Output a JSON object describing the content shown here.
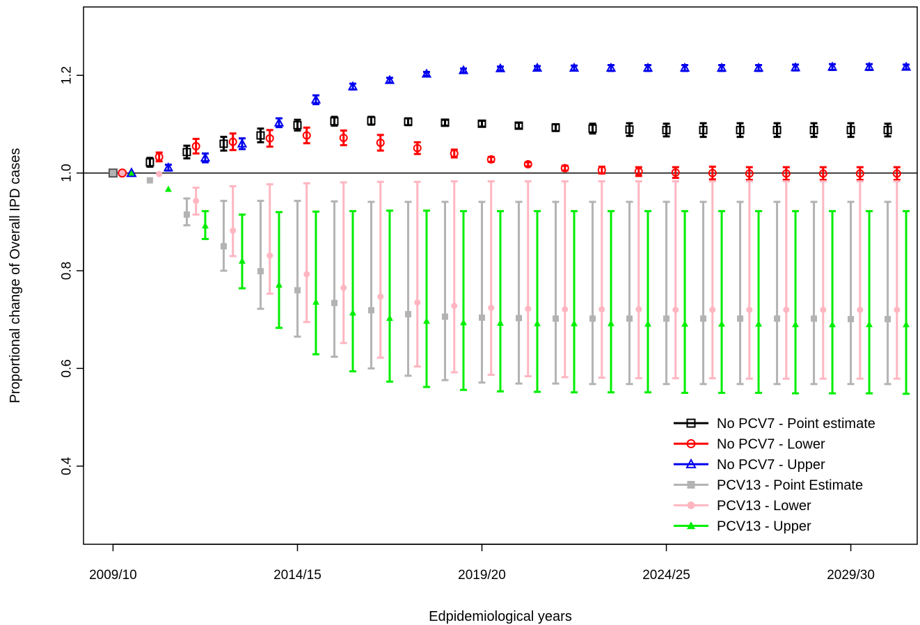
{
  "chart_data": {
    "type": "scatter",
    "xlabel": "Edpidemiological years",
    "ylabel": "Proportional change of Overall IPD cases",
    "x_tick_labels": [
      "2009/10",
      "2014/15",
      "2019/20",
      "2024/25",
      "2029/30"
    ],
    "x_tick_positions": [
      0,
      5,
      10,
      15,
      20
    ],
    "xlim": [
      -0.8,
      21.8
    ],
    "ylim": [
      0.24,
      1.34
    ],
    "y_ticks": [
      0.4,
      0.6,
      0.8,
      1.0,
      1.2
    ],
    "y_tick_labels": [
      "0.4",
      "0.6",
      "0.8",
      "1.0",
      "1.2"
    ],
    "reference_line": 1.0,
    "grid": false,
    "legend_position": "bottom-right",
    "series": [
      {
        "name": "No PCV7 - Point estimate",
        "color": "#000000",
        "marker": "open-square",
        "offset": 1.0,
        "y": [
          1.022,
          1.043,
          1.06,
          1.077,
          1.098,
          1.106,
          1.107,
          1.105,
          1.103,
          1.101,
          1.097,
          1.093,
          1.091,
          1.089,
          1.088,
          1.088,
          1.088,
          1.088,
          1.088,
          1.088,
          1.088
        ],
        "err": [
          0.009,
          0.013,
          0.014,
          0.014,
          0.011,
          0.009,
          0.008,
          0.007,
          0.006,
          0.006,
          0.006,
          0.007,
          0.01,
          0.013,
          0.013,
          0.014,
          0.014,
          0.014,
          0.014,
          0.014,
          0.013
        ]
      },
      {
        "name": "No PCV7 - Lower",
        "color": "#ff0000",
        "marker": "open-circle",
        "offset": 1.25,
        "y": [
          1.033,
          1.055,
          1.064,
          1.071,
          1.077,
          1.072,
          1.062,
          1.051,
          1.04,
          1.028,
          1.018,
          1.01,
          1.006,
          1.003,
          1.001,
          1.0,
          0.999,
          0.999,
          0.999,
          0.999,
          0.999
        ],
        "err": [
          0.009,
          0.015,
          0.017,
          0.017,
          0.016,
          0.015,
          0.016,
          0.012,
          0.008,
          0.005,
          0.004,
          0.005,
          0.007,
          0.009,
          0.011,
          0.013,
          0.013,
          0.013,
          0.013,
          0.013,
          0.013
        ]
      },
      {
        "name": "No PCV7 - Upper",
        "color": "#0000ee",
        "marker": "open-triangle",
        "offset": 1.5,
        "y": [
          1.011,
          1.031,
          1.06,
          1.103,
          1.15,
          1.177,
          1.19,
          1.203,
          1.21,
          1.214,
          1.215,
          1.215,
          1.215,
          1.215,
          1.215,
          1.215,
          1.215,
          1.216,
          1.217,
          1.217,
          1.217
        ],
        "err": [
          0.006,
          0.009,
          0.011,
          0.009,
          0.009,
          0.006,
          0.005,
          0.004,
          0.004,
          0.004,
          0.004,
          0.005,
          0.006,
          0.006,
          0.006,
          0.006,
          0.006,
          0.006,
          0.006,
          0.006,
          0.005
        ]
      },
      {
        "name": "PCV13 - Point Estimate",
        "color": "#b3b3b3",
        "marker": "filled-square",
        "offset": 1.0,
        "y": [
          0.985,
          0.915,
          0.85,
          0.799,
          0.76,
          0.734,
          0.719,
          0.711,
          0.706,
          0.704,
          0.703,
          0.702,
          0.702,
          0.702,
          0.702,
          0.702,
          0.702,
          0.702,
          0.702,
          0.701,
          0.701
        ],
        "lo": [
          0.985,
          0.893,
          0.8,
          0.722,
          0.665,
          0.624,
          0.6,
          0.585,
          0.576,
          0.571,
          0.569,
          0.569,
          0.568,
          0.568,
          0.568,
          0.568,
          0.568,
          0.568,
          0.568,
          0.568,
          0.568
        ],
        "hi": [
          0.985,
          0.948,
          0.943,
          0.943,
          0.943,
          0.942,
          0.941,
          0.941,
          0.941,
          0.941,
          0.941,
          0.941,
          0.941,
          0.941,
          0.941,
          0.941,
          0.941,
          0.941,
          0.941,
          0.941,
          0.941
        ]
      },
      {
        "name": "PCV13 - Lower",
        "color": "#ffb6c1",
        "marker": "filled-circle",
        "offset": 1.25,
        "y": [
          0.998,
          0.943,
          0.882,
          0.831,
          0.793,
          0.765,
          0.747,
          0.735,
          0.728,
          0.724,
          0.722,
          0.721,
          0.721,
          0.721,
          0.72,
          0.72,
          0.72,
          0.72,
          0.72,
          0.72,
          0.72
        ],
        "lo": [
          0.998,
          0.915,
          0.83,
          0.753,
          0.695,
          0.652,
          0.622,
          0.604,
          0.592,
          0.587,
          0.584,
          0.582,
          0.581,
          0.58,
          0.58,
          0.58,
          0.579,
          0.579,
          0.579,
          0.579,
          0.579
        ],
        "hi": [
          0.998,
          0.97,
          0.973,
          0.977,
          0.979,
          0.981,
          0.982,
          0.982,
          0.983,
          0.983,
          0.983,
          0.983,
          0.983,
          0.983,
          0.983,
          0.983,
          0.983,
          0.983,
          0.983,
          0.983,
          0.983
        ]
      },
      {
        "name": "PCV13 - Upper",
        "color": "#00ee00",
        "marker": "filled-triangle",
        "offset": 1.5,
        "y": [
          0.967,
          0.892,
          0.82,
          0.771,
          0.736,
          0.714,
          0.703,
          0.697,
          0.694,
          0.693,
          0.692,
          0.692,
          0.692,
          0.691,
          0.691,
          0.691,
          0.691,
          0.69,
          0.69,
          0.69,
          0.69
        ],
        "lo": [
          0.967,
          0.865,
          0.764,
          0.683,
          0.629,
          0.594,
          0.573,
          0.562,
          0.556,
          0.553,
          0.552,
          0.551,
          0.551,
          0.551,
          0.55,
          0.55,
          0.55,
          0.549,
          0.549,
          0.549,
          0.548
        ],
        "hi": [
          0.967,
          0.922,
          0.915,
          0.92,
          0.921,
          0.922,
          0.923,
          0.923,
          0.922,
          0.922,
          0.922,
          0.922,
          0.922,
          0.922,
          0.922,
          0.922,
          0.922,
          0.922,
          0.922,
          0.922,
          0.922
        ]
      }
    ],
    "baseline_points": [
      {
        "x": 0,
        "y": 1.0,
        "color": "#b3b3b3",
        "stroke": "#555555",
        "marker": "square"
      },
      {
        "x": 0.25,
        "y": 1.0,
        "color": "#ffb6c1",
        "stroke": "#ff0000",
        "marker": "circle"
      },
      {
        "x": 0.5,
        "y": 1.0,
        "color": "#00ee00",
        "stroke": "#0000ee",
        "marker": "triangle"
      }
    ]
  }
}
